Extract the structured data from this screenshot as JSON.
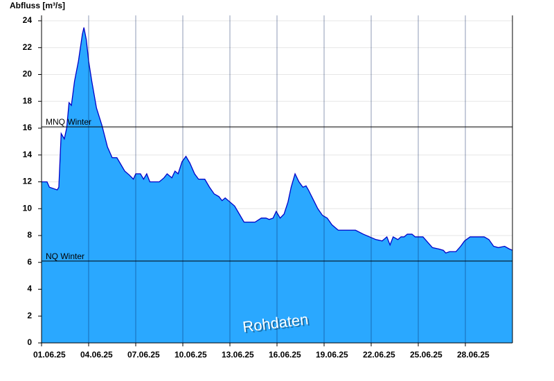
{
  "chart_data": {
    "type": "area",
    "y_label": "Abfluss [m³/s]",
    "watermark": "Rohdaten",
    "color": "#2aa8ff",
    "line_color": "#0000c8",
    "grid": true,
    "xlim": [
      0,
      30
    ],
    "ylim": [
      0,
      24.4
    ],
    "yticks": [
      0,
      2,
      4,
      6,
      8,
      10,
      12,
      14,
      16,
      18,
      20,
      22,
      24
    ],
    "xticks": [
      {
        "value": 0,
        "label": "01.06.25"
      },
      {
        "value": 3,
        "label": "04.06.25"
      },
      {
        "value": 6,
        "label": "07.06.25"
      },
      {
        "value": 9,
        "label": "10.06.25"
      },
      {
        "value": 12,
        "label": "13.06.25"
      },
      {
        "value": 15,
        "label": "16.06.25"
      },
      {
        "value": 18,
        "label": "19.06.25"
      },
      {
        "value": 21,
        "label": "22.06.25"
      },
      {
        "value": 24,
        "label": "25.06.25"
      },
      {
        "value": 27,
        "label": "28.06.25"
      }
    ],
    "reference_lines": [
      {
        "label": "MNQ Winter",
        "value": 16.1
      },
      {
        "label": "NQ Winter",
        "value": 6.1
      }
    ],
    "x": [
      0,
      0.35,
      0.5,
      1.0,
      1.1,
      1.25,
      1.45,
      1.6,
      1.75,
      1.9,
      2.1,
      2.35,
      2.6,
      2.7,
      2.85,
      3.0,
      3.2,
      3.5,
      3.85,
      4.2,
      4.5,
      4.8,
      5.0,
      5.3,
      5.6,
      5.85,
      6.0,
      6.3,
      6.5,
      6.7,
      6.9,
      7.5,
      7.8,
      8.0,
      8.3,
      8.5,
      8.7,
      8.95,
      9.2,
      9.45,
      9.75,
      10.0,
      10.4,
      10.7,
      11.0,
      11.3,
      11.5,
      11.7,
      12.0,
      12.3,
      12.6,
      12.9,
      13.2,
      13.6,
      14.0,
      14.3,
      14.5,
      14.75,
      14.95,
      15.2,
      15.45,
      15.7,
      15.9,
      16.15,
      16.4,
      16.65,
      16.85,
      17.0,
      17.3,
      17.6,
      17.9,
      18.2,
      18.5,
      18.9,
      19.4,
      20.0,
      20.5,
      20.9,
      21.3,
      21.7,
      22.0,
      22.2,
      22.4,
      22.7,
      22.9,
      23.1,
      23.3,
      23.6,
      23.8,
      24.3,
      24.6,
      24.9,
      25.3,
      25.6,
      25.75,
      26.0,
      26.4,
      26.7,
      26.95,
      27.3,
      27.7,
      28.2,
      28.5,
      28.8,
      29.1,
      29.5,
      29.8,
      30.0
    ],
    "values": [
      12.0,
      12.0,
      11.6,
      11.4,
      11.6,
      15.6,
      15.2,
      16.0,
      17.9,
      17.7,
      19.5,
      21.0,
      23.0,
      23.5,
      22.6,
      21.0,
      19.5,
      17.5,
      16.2,
      14.6,
      13.8,
      13.8,
      13.4,
      12.8,
      12.5,
      12.2,
      12.6,
      12.6,
      12.2,
      12.6,
      12.0,
      12.0,
      12.3,
      12.6,
      12.3,
      12.8,
      12.6,
      13.5,
      13.9,
      13.4,
      12.6,
      12.2,
      12.2,
      11.6,
      11.1,
      10.9,
      10.6,
      10.8,
      10.5,
      10.2,
      9.6,
      9.0,
      9.0,
      9.0,
      9.3,
      9.3,
      9.2,
      9.3,
      9.8,
      9.3,
      9.6,
      10.5,
      11.6,
      12.6,
      12.0,
      11.6,
      11.7,
      11.4,
      10.7,
      10.0,
      9.5,
      9.3,
      8.8,
      8.4,
      8.4,
      8.4,
      8.1,
      7.9,
      7.7,
      7.6,
      7.9,
      7.3,
      7.9,
      7.7,
      7.9,
      7.9,
      8.1,
      8.1,
      7.9,
      7.9,
      7.5,
      7.1,
      7.0,
      6.9,
      6.7,
      6.8,
      6.8,
      7.2,
      7.6,
      7.9,
      7.9,
      7.9,
      7.7,
      7.2,
      7.1,
      7.2,
      7.0,
      6.9
    ]
  }
}
